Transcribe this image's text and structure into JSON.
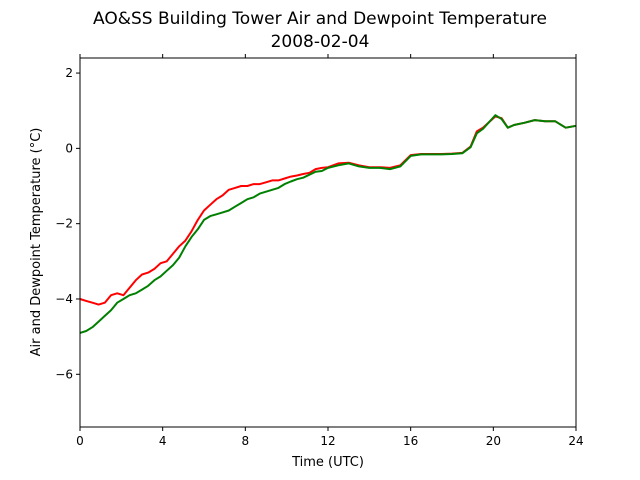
{
  "chart_data": {
    "type": "line",
    "title": "AO&SS Building Tower Air and Dewpoint Temperature",
    "subtitle": "2008-02-04",
    "xlabel": "Time (UTC)",
    "ylabel": "Air and Dewpoint Temperature (°C)",
    "xlim": [
      0,
      24
    ],
    "ylim": [
      -7.4,
      2.4
    ],
    "xticks": [
      0,
      4,
      8,
      12,
      16,
      20,
      24
    ],
    "xtick_labels": [
      "0",
      "4",
      "8",
      "12",
      "16",
      "20",
      "24"
    ],
    "yticks": [
      -6,
      -4,
      -2,
      0,
      2
    ],
    "ytick_labels": [
      "−6",
      "−4",
      "−2",
      "0",
      "2"
    ],
    "grid": false,
    "series": [
      {
        "color": "#ff0000",
        "x": [
          0.0,
          0.3,
          0.6,
          0.9,
          1.2,
          1.5,
          1.8,
          2.1,
          2.4,
          2.7,
          3.0,
          3.3,
          3.6,
          3.9,
          4.2,
          4.5,
          4.8,
          5.1,
          5.4,
          5.7,
          6.0,
          6.3,
          6.6,
          6.9,
          7.2,
          7.5,
          7.8,
          8.1,
          8.4,
          8.7,
          9.0,
          9.3,
          9.6,
          9.9,
          10.2,
          10.5,
          10.8,
          11.1,
          11.4,
          11.7,
          12.0,
          12.5,
          13.0,
          13.5,
          14.0,
          14.5,
          15.0,
          15.5,
          16.0,
          16.5,
          17.0,
          17.5,
          18.0,
          18.5,
          18.9,
          19.2,
          19.5,
          19.8,
          20.1,
          20.4,
          20.7,
          21.0,
          21.5,
          22.0,
          22.5,
          23.0,
          23.5,
          24.0
        ],
        "y": [
          -4.0,
          -4.05,
          -4.1,
          -4.15,
          -4.1,
          -3.9,
          -3.85,
          -3.9,
          -3.7,
          -3.5,
          -3.35,
          -3.3,
          -3.2,
          -3.05,
          -3.0,
          -2.8,
          -2.6,
          -2.45,
          -2.2,
          -1.9,
          -1.65,
          -1.5,
          -1.35,
          -1.25,
          -1.1,
          -1.05,
          -1.0,
          -1.0,
          -0.95,
          -0.95,
          -0.9,
          -0.85,
          -0.85,
          -0.8,
          -0.75,
          -0.72,
          -0.68,
          -0.65,
          -0.55,
          -0.52,
          -0.5,
          -0.4,
          -0.38,
          -0.45,
          -0.5,
          -0.5,
          -0.52,
          -0.45,
          -0.18,
          -0.15,
          -0.15,
          -0.15,
          -0.14,
          -0.12,
          0.05,
          0.45,
          0.55,
          0.7,
          0.85,
          0.8,
          0.55,
          0.62,
          0.68,
          0.75,
          0.72,
          0.72,
          0.55,
          0.6
        ]
      },
      {
        "color": "#008000",
        "x": [
          0.0,
          0.3,
          0.6,
          0.9,
          1.2,
          1.5,
          1.8,
          2.1,
          2.4,
          2.7,
          3.0,
          3.3,
          3.6,
          3.9,
          4.2,
          4.5,
          4.8,
          5.1,
          5.4,
          5.7,
          6.0,
          6.3,
          6.6,
          6.9,
          7.2,
          7.5,
          7.8,
          8.1,
          8.4,
          8.7,
          9.0,
          9.3,
          9.6,
          9.9,
          10.2,
          10.5,
          10.8,
          11.1,
          11.4,
          11.7,
          12.0,
          12.5,
          13.0,
          13.5,
          14.0,
          14.5,
          15.0,
          15.5,
          16.0,
          16.5,
          17.0,
          17.5,
          18.0,
          18.5,
          18.9,
          19.2,
          19.5,
          19.8,
          20.1,
          20.4,
          20.7,
          21.0,
          21.5,
          22.0,
          22.5,
          23.0,
          23.5,
          24.0
        ],
        "y": [
          -4.9,
          -4.85,
          -4.75,
          -4.6,
          -4.45,
          -4.3,
          -4.1,
          -4.0,
          -3.9,
          -3.85,
          -3.75,
          -3.65,
          -3.5,
          -3.4,
          -3.25,
          -3.1,
          -2.9,
          -2.6,
          -2.35,
          -2.15,
          -1.9,
          -1.8,
          -1.75,
          -1.7,
          -1.65,
          -1.55,
          -1.45,
          -1.35,
          -1.3,
          -1.2,
          -1.15,
          -1.1,
          -1.05,
          -0.95,
          -0.88,
          -0.82,
          -0.78,
          -0.7,
          -0.62,
          -0.6,
          -0.52,
          -0.45,
          -0.4,
          -0.48,
          -0.52,
          -0.52,
          -0.55,
          -0.48,
          -0.2,
          -0.16,
          -0.16,
          -0.16,
          -0.15,
          -0.13,
          0.03,
          0.4,
          0.52,
          0.7,
          0.88,
          0.78,
          0.55,
          0.62,
          0.68,
          0.75,
          0.72,
          0.72,
          0.55,
          0.6
        ]
      }
    ]
  }
}
